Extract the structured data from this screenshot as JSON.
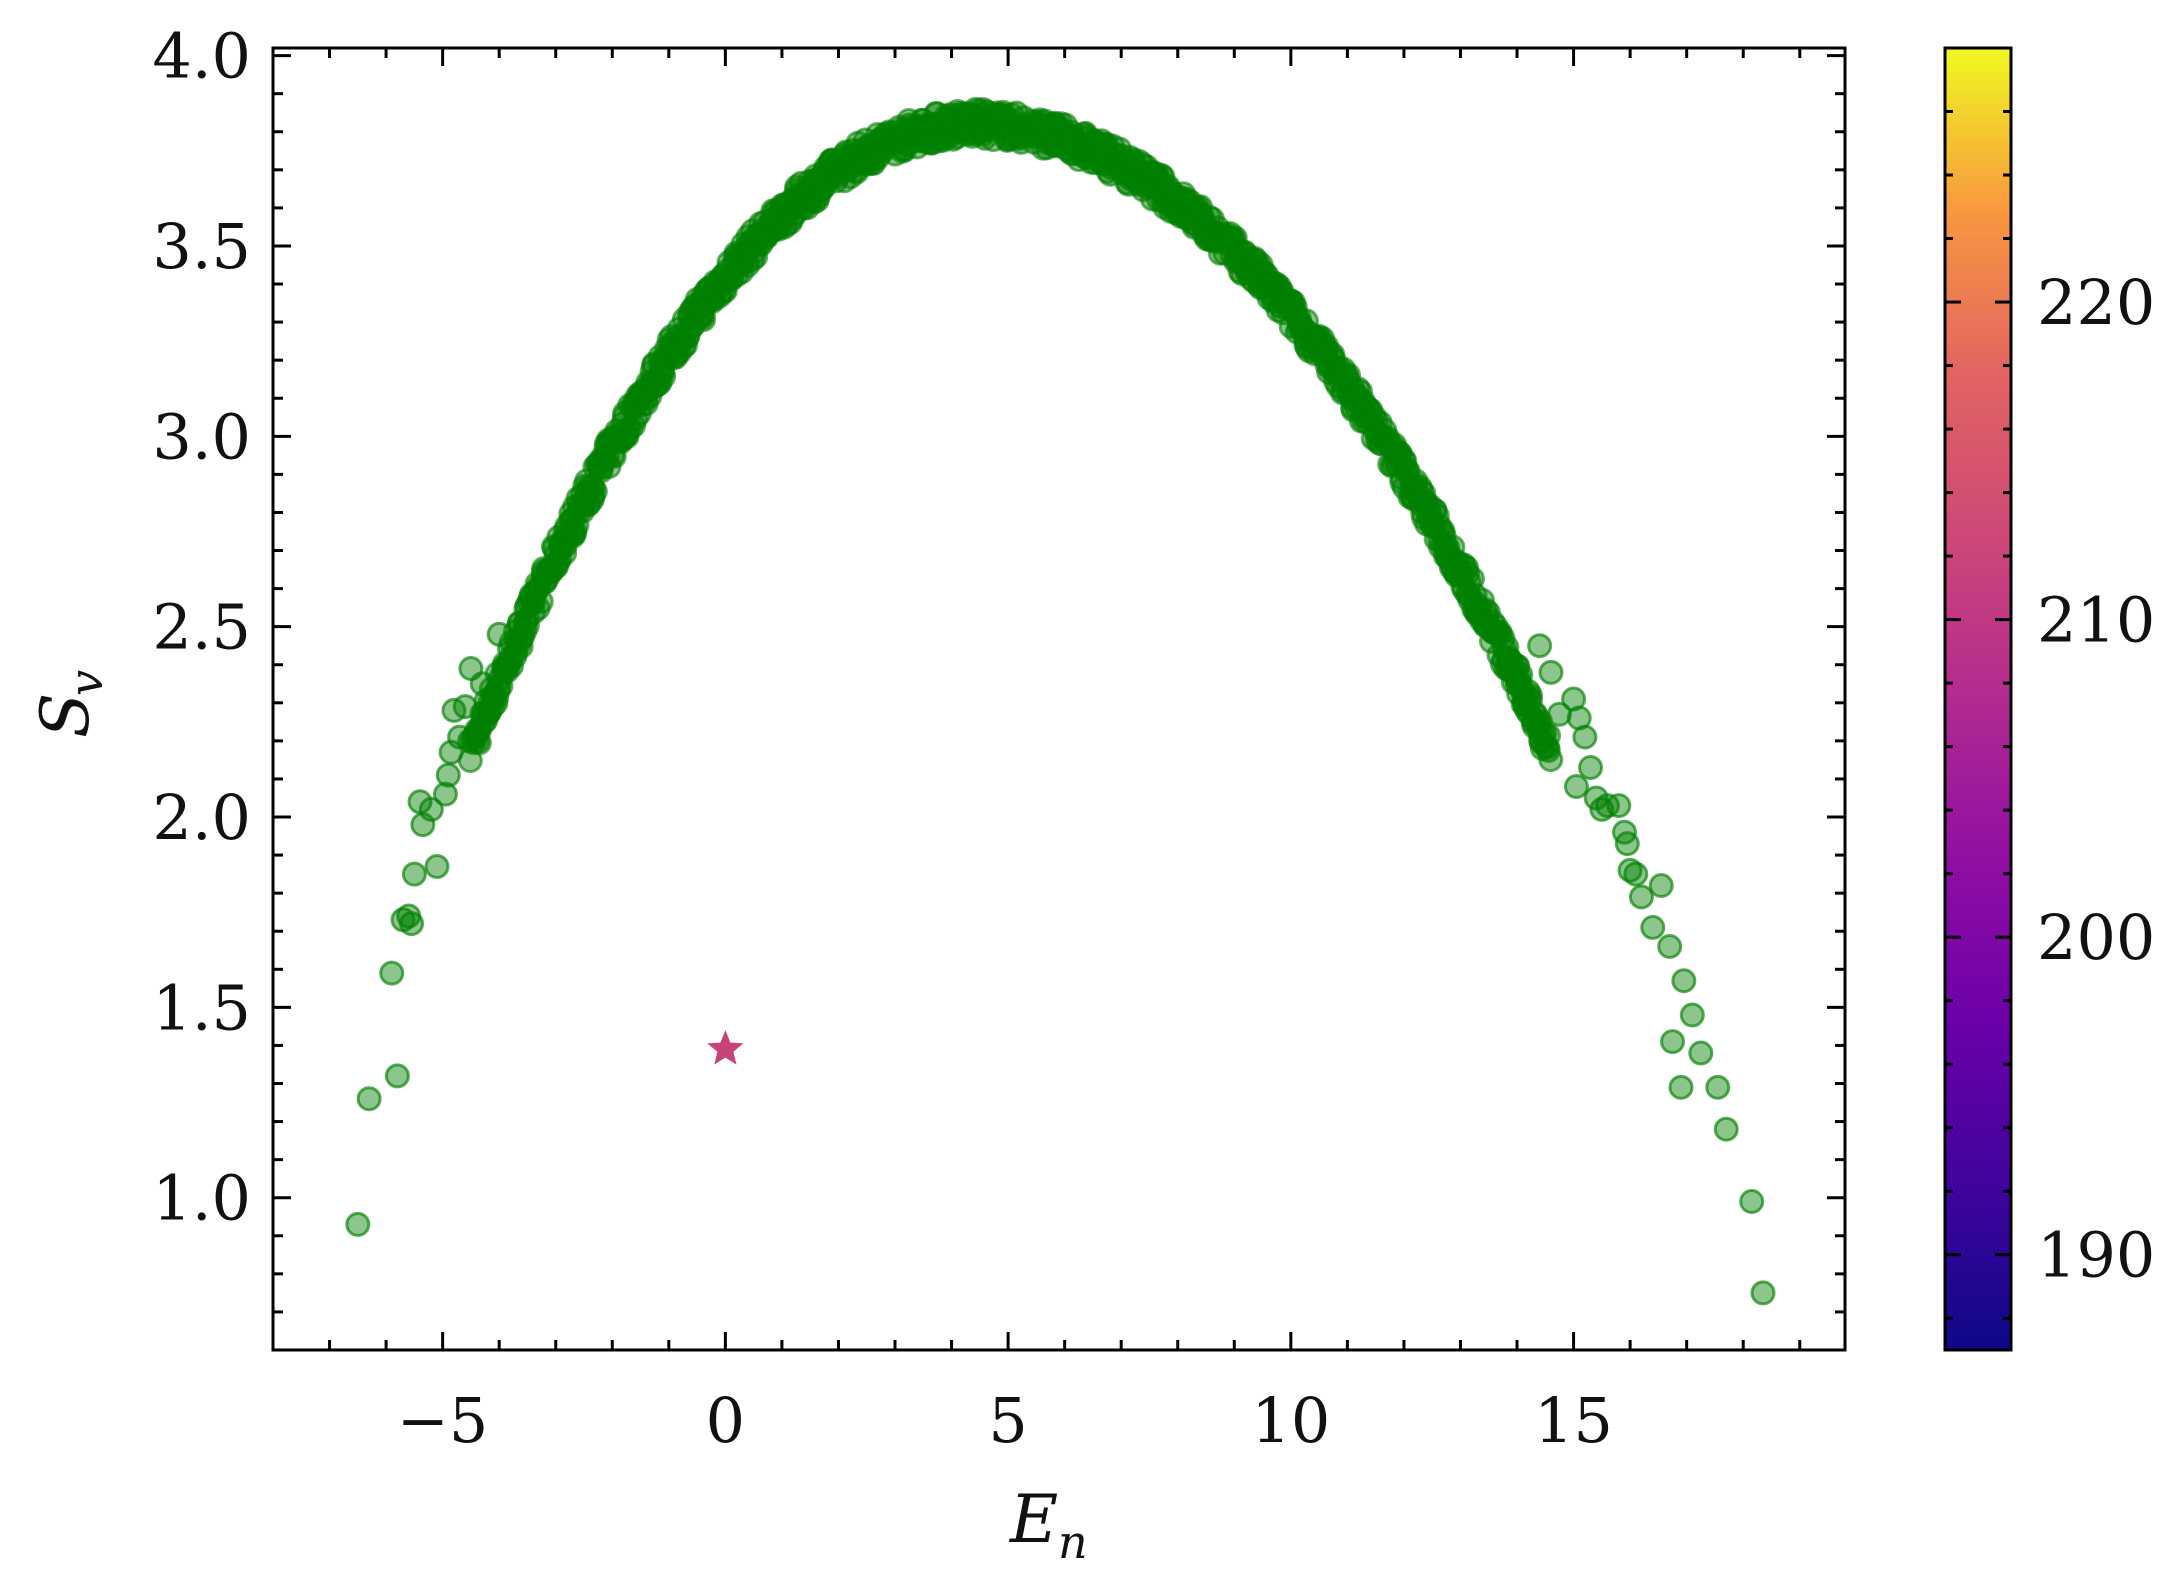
{
  "chart_data": {
    "type": "scatter",
    "title": "",
    "xlabel": "E",
    "xlabel_subscript": "n",
    "ylabel": "S",
    "ylabel_subscript": "v",
    "xlim": [
      -8,
      19.8
    ],
    "ylim": [
      0.6,
      4.02
    ],
    "grid": false,
    "x_ticks": [
      -5,
      0,
      5,
      10,
      15
    ],
    "x_tick_labels": [
      "−5",
      "0",
      "5",
      "10",
      "15"
    ],
    "y_ticks": [
      1.0,
      1.5,
      2.0,
      2.5,
      3.0,
      3.5,
      4.0
    ],
    "y_tick_labels": [
      "1.0",
      "1.5",
      "2.0",
      "2.5",
      "3.0",
      "3.5",
      "4.0"
    ],
    "colorbar": {
      "colormap": "plasma",
      "range": [
        187,
        228
      ],
      "ticks": [
        190,
        200,
        210,
        220
      ],
      "tick_labels": [
        "190",
        "200",
        "210",
        220
      ]
    },
    "series": [
      {
        "marker": "circle",
        "color": "#008000",
        "alpha": 0.55,
        "dense_curve": {
          "description_free": true,
          "x_start": -4.5,
          "x_end": 14.6,
          "peak_x": 4.4,
          "peak_y": 3.82,
          "band_halfwidth": 0.04
        },
        "points": [
          [
            -6.5,
            0.93
          ],
          [
            -6.3,
            1.26
          ],
          [
            -5.9,
            1.59
          ],
          [
            -5.8,
            1.32
          ],
          [
            -5.7,
            1.73
          ],
          [
            -5.6,
            1.74
          ],
          [
            -5.55,
            1.72
          ],
          [
            -5.5,
            1.85
          ],
          [
            -5.4,
            2.04
          ],
          [
            -5.35,
            1.98
          ],
          [
            -5.2,
            2.02
          ],
          [
            -5.1,
            1.87
          ],
          [
            -4.95,
            2.06
          ],
          [
            -4.9,
            2.11
          ],
          [
            -4.85,
            2.17
          ],
          [
            -4.8,
            2.28
          ],
          [
            -4.7,
            2.21
          ],
          [
            -4.6,
            2.29
          ],
          [
            -4.5,
            2.39
          ],
          [
            -4.3,
            2.35
          ],
          [
            -4.1,
            2.32
          ],
          [
            -4.0,
            2.48
          ],
          [
            14.0,
            2.36
          ],
          [
            14.2,
            2.33
          ],
          [
            14.4,
            2.45
          ],
          [
            14.6,
            2.38
          ],
          [
            14.75,
            2.27
          ],
          [
            15.0,
            2.31
          ],
          [
            15.05,
            2.08
          ],
          [
            15.1,
            2.26
          ],
          [
            15.2,
            2.21
          ],
          [
            15.3,
            2.13
          ],
          [
            15.4,
            2.05
          ],
          [
            15.5,
            2.02
          ],
          [
            15.6,
            2.03
          ],
          [
            15.8,
            2.03
          ],
          [
            15.9,
            1.96
          ],
          [
            15.95,
            1.93
          ],
          [
            16.0,
            1.86
          ],
          [
            16.1,
            1.85
          ],
          [
            16.2,
            1.79
          ],
          [
            16.4,
            1.71
          ],
          [
            16.55,
            1.82
          ],
          [
            16.7,
            1.66
          ],
          [
            16.75,
            1.41
          ],
          [
            16.9,
            1.29
          ],
          [
            16.95,
            1.57
          ],
          [
            17.1,
            1.48
          ],
          [
            17.25,
            1.38
          ],
          [
            17.55,
            1.29
          ],
          [
            17.7,
            1.18
          ],
          [
            18.15,
            0.99
          ],
          [
            18.35,
            0.75
          ]
        ]
      },
      {
        "marker": "star",
        "color": "#c9437b",
        "points": [
          [
            0.0,
            1.39
          ]
        ]
      }
    ]
  }
}
